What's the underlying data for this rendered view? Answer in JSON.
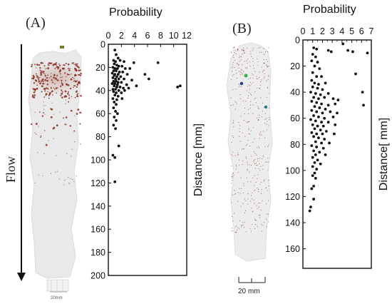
{
  "figure": {
    "panel_a_letter": "(A)",
    "panel_b_letter": "(B)",
    "flow_label": "Flow",
    "scale_a": "20mm",
    "scale_b": "20 mm"
  },
  "colors": {
    "ink": "#111111",
    "arrow": "#111111",
    "specimen": "#e9e9e9",
    "specimen_edge": "#dcdcdc",
    "particle": "#8b2a1a",
    "highlight_green": "#3cb04a",
    "highlight_blue": "#2434a8",
    "highlight_teal": "#1f7f86"
  },
  "chart_data": [
    {
      "type": "scatter",
      "panel": "A",
      "xlabel": "Probability",
      "ylabel": "Distance [mm]",
      "xlim": [
        0,
        12
      ],
      "ylim": [
        0,
        200
      ],
      "y_inverted": true,
      "x_axis_position": "top",
      "xticks": [
        0,
        2,
        4,
        6,
        8,
        10,
        12
      ],
      "xtick_labels": [
        "0",
        "2",
        "4",
        "6",
        "8",
        "10",
        "12"
      ],
      "yticks": [
        0,
        20,
        40,
        60,
        80,
        100,
        120,
        140,
        160,
        180,
        200
      ],
      "ytick_labels": [
        "0",
        "20",
        "40",
        "60",
        "80",
        "100",
        "120",
        "140",
        "160",
        "180",
        "200"
      ],
      "grid": false,
      "points": [
        [
          1.0,
          5
        ],
        [
          1.2,
          9
        ],
        [
          1.5,
          12
        ],
        [
          0.8,
          14
        ],
        [
          1.1,
          15
        ],
        [
          1.8,
          14
        ],
        [
          2.4,
          15
        ],
        [
          3.9,
          16
        ],
        [
          7.6,
          16
        ],
        [
          0.9,
          17
        ],
        [
          1.3,
          18
        ],
        [
          1.6,
          19
        ],
        [
          2.1,
          19
        ],
        [
          0.7,
          20
        ],
        [
          1.0,
          21
        ],
        [
          1.4,
          21
        ],
        [
          2.6,
          21
        ],
        [
          3.3,
          21
        ],
        [
          0.8,
          23
        ],
        [
          1.2,
          23
        ],
        [
          1.7,
          24
        ],
        [
          2.2,
          24
        ],
        [
          0.6,
          25
        ],
        [
          1.0,
          26
        ],
        [
          1.5,
          26
        ],
        [
          2.9,
          26
        ],
        [
          5.6,
          26
        ],
        [
          0.9,
          27
        ],
        [
          1.3,
          28
        ],
        [
          1.9,
          28
        ],
        [
          0.7,
          29
        ],
        [
          1.1,
          30
        ],
        [
          1.6,
          30
        ],
        [
          2.4,
          30
        ],
        [
          3.6,
          31
        ],
        [
          6.2,
          30
        ],
        [
          0.8,
          32
        ],
        [
          1.2,
          32
        ],
        [
          1.5,
          33
        ],
        [
          2.0,
          33
        ],
        [
          0.6,
          34
        ],
        [
          1.0,
          34
        ],
        [
          1.4,
          35
        ],
        [
          2.8,
          35
        ],
        [
          4.3,
          36
        ],
        [
          0.9,
          36
        ],
        [
          1.3,
          37
        ],
        [
          1.8,
          37
        ],
        [
          2.3,
          38
        ],
        [
          3.1,
          38
        ],
        [
          10.6,
          37
        ],
        [
          11.0,
          36
        ],
        [
          0.7,
          39
        ],
        [
          1.1,
          39
        ],
        [
          1.6,
          40
        ],
        [
          2.5,
          40
        ],
        [
          0.8,
          41
        ],
        [
          1.2,
          42
        ],
        [
          2.0,
          42
        ],
        [
          1.0,
          44
        ],
        [
          1.5,
          45
        ],
        [
          0.7,
          47
        ],
        [
          1.3,
          48
        ],
        [
          2.1,
          47
        ],
        [
          0.9,
          50
        ],
        [
          1.2,
          52
        ],
        [
          0.8,
          55
        ],
        [
          1.1,
          58
        ],
        [
          1.4,
          60
        ],
        [
          0.9,
          63
        ],
        [
          1.2,
          66
        ],
        [
          0.8,
          70
        ],
        [
          1.1,
          73
        ],
        [
          1.6,
          88
        ],
        [
          0.7,
          96
        ],
        [
          1.0,
          98
        ],
        [
          1.0,
          119
        ]
      ]
    },
    {
      "type": "scatter",
      "panel": "B",
      "xlabel": "Probability",
      "ylabel": "Distance[ mm]",
      "xlim": [
        0,
        7
      ],
      "ylim": [
        0,
        175
      ],
      "y_inverted": true,
      "x_axis_position": "top",
      "xticks": [
        0,
        1,
        2,
        3,
        4,
        5,
        6,
        7
      ],
      "xtick_labels": [
        "0",
        "1",
        "2",
        "3",
        "4",
        "5",
        "6",
        "7"
      ],
      "minor_xticks": [
        0.5,
        1.5,
        2.5,
        3.5,
        4.5,
        5.5,
        6.5
      ],
      "yticks": [
        0,
        20,
        40,
        60,
        80,
        100,
        120,
        140,
        160
      ],
      "ytick_labels": [
        "0",
        "20",
        "40",
        "60",
        "80",
        "100",
        "120",
        "140",
        "160"
      ],
      "grid": false,
      "points": [
        [
          4.1,
          3
        ],
        [
          1.1,
          6
        ],
        [
          1.4,
          7
        ],
        [
          2.6,
          8
        ],
        [
          2.9,
          9
        ],
        [
          4.6,
          8
        ],
        [
          5.1,
          9
        ],
        [
          6.6,
          10
        ],
        [
          1.0,
          11
        ],
        [
          1.3,
          13
        ],
        [
          0.9,
          16
        ],
        [
          1.5,
          17
        ],
        [
          1.2,
          20
        ],
        [
          1.7,
          22
        ],
        [
          1.0,
          25
        ],
        [
          5.4,
          26
        ],
        [
          1.4,
          28
        ],
        [
          1.9,
          28
        ],
        [
          0.9,
          31
        ],
        [
          1.2,
          33
        ],
        [
          1.6,
          34
        ],
        [
          2.3,
          33
        ],
        [
          1.0,
          36
        ],
        [
          1.5,
          37
        ],
        [
          2.0,
          38
        ],
        [
          0.8,
          40
        ],
        [
          1.3,
          41
        ],
        [
          1.8,
          42
        ],
        [
          2.6,
          41
        ],
        [
          6.1,
          40
        ],
        [
          1.1,
          44
        ],
        [
          1.6,
          45
        ],
        [
          2.2,
          44
        ],
        [
          3.1,
          45
        ],
        [
          3.6,
          46
        ],
        [
          0.9,
          47
        ],
        [
          1.4,
          48
        ],
        [
          1.9,
          49
        ],
        [
          2.6,
          50
        ],
        [
          3.3,
          49
        ],
        [
          6.2,
          50
        ],
        [
          1.2,
          51
        ],
        [
          1.7,
          52
        ],
        [
          2.3,
          53
        ],
        [
          0.9,
          54
        ],
        [
          1.4,
          55
        ],
        [
          2.0,
          56
        ],
        [
          2.8,
          55
        ],
        [
          3.5,
          56
        ],
        [
          1.1,
          58
        ],
        [
          1.6,
          59
        ],
        [
          2.2,
          60
        ],
        [
          3.1,
          59
        ],
        [
          0.8,
          61
        ],
        [
          1.3,
          62
        ],
        [
          1.9,
          63
        ],
        [
          2.6,
          63
        ],
        [
          1.0,
          65
        ],
        [
          1.5,
          66
        ],
        [
          2.1,
          66
        ],
        [
          3.3,
          65
        ],
        [
          1.2,
          68
        ],
        [
          1.8,
          69
        ],
        [
          2.4,
          70
        ],
        [
          0.9,
          71
        ],
        [
          1.4,
          72
        ],
        [
          2.0,
          72
        ],
        [
          3.2,
          72
        ],
        [
          1.1,
          74
        ],
        [
          1.6,
          75
        ],
        [
          2.2,
          76
        ],
        [
          1.3,
          78
        ],
        [
          1.9,
          79
        ],
        [
          2.7,
          79
        ],
        [
          0.9,
          81
        ],
        [
          1.4,
          82
        ],
        [
          2.1,
          83
        ],
        [
          1.1,
          85
        ],
        [
          1.7,
          86
        ],
        [
          1.3,
          88
        ],
        [
          2.3,
          88
        ],
        [
          1.0,
          90
        ],
        [
          1.5,
          92
        ],
        [
          1.2,
          94
        ],
        [
          1.8,
          95
        ],
        [
          1.0,
          97
        ],
        [
          1.4,
          99
        ],
        [
          1.2,
          102
        ],
        [
          1.0,
          104
        ],
        [
          1.3,
          106
        ],
        [
          1.1,
          112
        ],
        [
          0.9,
          114
        ],
        [
          1.1,
          122
        ],
        [
          0.8,
          128
        ],
        [
          0.7,
          131
        ]
      ]
    }
  ]
}
